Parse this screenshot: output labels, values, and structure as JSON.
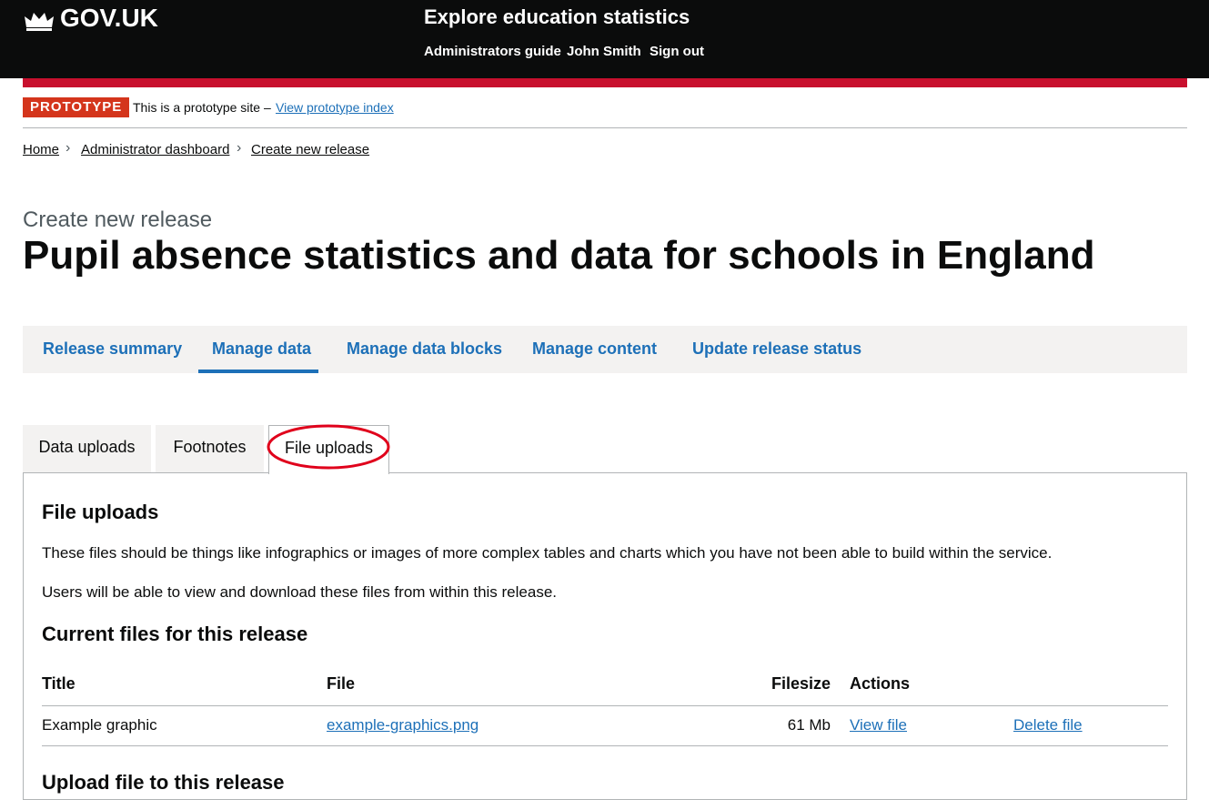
{
  "header": {
    "logo": "GOV.UK",
    "service": "Explore education statistics",
    "nav": [
      "Administrators guide",
      "John Smith",
      "Sign out"
    ]
  },
  "phase_banner": {
    "tag": "PROTOTYPE",
    "text": "This is a prototype site –",
    "link": "View prototype index"
  },
  "breadcrumbs": [
    "Home",
    "Administrator dashboard",
    "Create new release"
  ],
  "caption": "Create new release",
  "title": "Pupil absence statistics and data for schools in England",
  "tabs": [
    "Release summary",
    "Manage data",
    "Manage data blocks",
    "Manage content",
    "Update release status"
  ],
  "subtabs": [
    "Data uploads",
    "Footnotes",
    "File uploads"
  ],
  "panel": {
    "heading": "File uploads",
    "paragraphs": [
      "These files should be things like infographics or images of more complex tables and charts which you have not been able to build within the service.",
      "Users will be able to view and download these files from within this release."
    ],
    "subheading": "Current files for this release",
    "table": {
      "headers": [
        "Title",
        "File",
        "Filesize",
        "Actions"
      ],
      "rows": [
        [
          "Example graphic",
          "example-graphics.png",
          "61 Mb",
          "View file",
          "Delete file"
        ]
      ]
    },
    "upload_heading": "Upload file to this release"
  }
}
